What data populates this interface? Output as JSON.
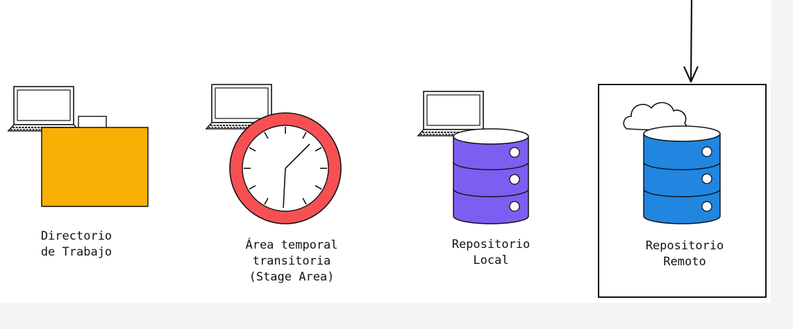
{
  "nodes": {
    "working_directory": {
      "label": "Directorio\nde Trabajo",
      "icon": "folder-icon",
      "color": "#f8b005"
    },
    "staging_area": {
      "label": "Área temporal\ntransitoria\n(Stage Area)",
      "icon": "clock-icon",
      "color": "#f65053"
    },
    "local_repository": {
      "label": "Repositorio\nLocal",
      "icon": "database-icon",
      "color": "#7c5ff0"
    },
    "remote_repository": {
      "label": "Repositorio\nRemoto",
      "icon": "database-icon",
      "color": "#2086e0"
    }
  },
  "colors": {
    "ink": "#111111",
    "canvas": "#ffffff",
    "background": "#f3f4f6"
  }
}
